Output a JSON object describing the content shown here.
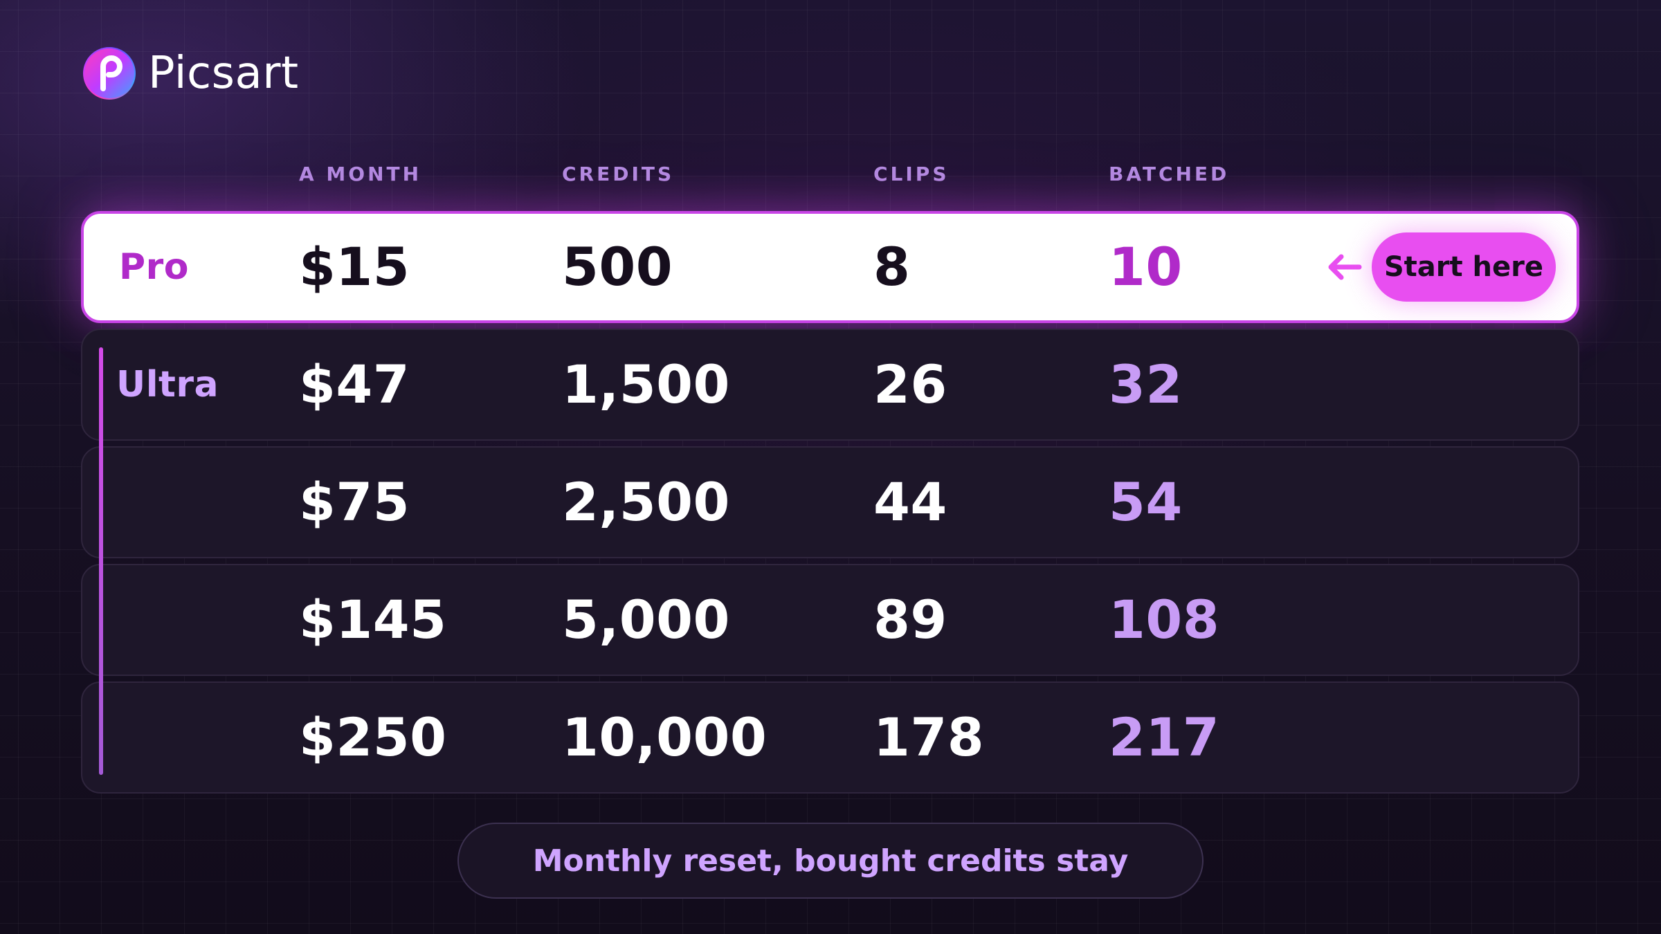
{
  "brand": {
    "name": "Picsart",
    "logo_icon": "picsart-logo-icon",
    "gradient": [
      "#ff3cbe",
      "#c03cff",
      "#6b4bff",
      "#3fa2ff"
    ]
  },
  "table": {
    "columns": [
      "A MONTH",
      "CREDITS",
      "CLIPS",
      "BATCHED"
    ],
    "rows": [
      {
        "tier": "Pro",
        "price": "$15",
        "credits": "500",
        "clips": "8",
        "batched": "10",
        "highlighted": true
      },
      {
        "tier": "Ultra",
        "price": "$47",
        "credits": "1,500",
        "clips": "26",
        "batched": "32"
      },
      {
        "tier": "",
        "price": "$75",
        "credits": "2,500",
        "clips": "44",
        "batched": "54"
      },
      {
        "tier": "",
        "price": "$145",
        "credits": "5,000",
        "clips": "89",
        "batched": "108"
      },
      {
        "tier": "",
        "price": "$250",
        "credits": "10,000",
        "clips": "178",
        "batched": "217"
      }
    ]
  },
  "cta": {
    "label": "Start here",
    "icon": "arrow-left-icon"
  },
  "footer": {
    "note": "Monthly reset, bought credits stay"
  },
  "colors": {
    "accent": "#e84ef0",
    "pro_text": "#b02ac9",
    "ultra_label": "#cfa4ff",
    "batched_ultra": "#c89cf5",
    "column_header": "#b48ce0",
    "background": "#150f1f"
  }
}
